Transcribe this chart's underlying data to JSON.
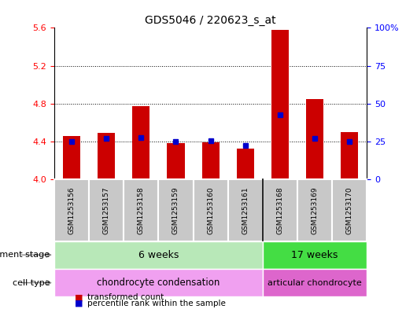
{
  "title": "GDS5046 / 220623_s_at",
  "samples": [
    "GSM1253156",
    "GSM1253157",
    "GSM1253158",
    "GSM1253159",
    "GSM1253160",
    "GSM1253161",
    "GSM1253168",
    "GSM1253169",
    "GSM1253170"
  ],
  "bar_values": [
    4.46,
    4.49,
    4.77,
    4.38,
    4.39,
    4.32,
    5.58,
    4.85,
    4.5
  ],
  "percentile_values": [
    4.4,
    4.43,
    4.44,
    4.4,
    4.41,
    4.36,
    4.68,
    4.43,
    4.4
  ],
  "ymin": 4.0,
  "ymax": 5.6,
  "yticks": [
    4.0,
    4.4,
    4.8,
    5.2,
    5.6
  ],
  "right_yticks": [
    0,
    25,
    50,
    75,
    100
  ],
  "bar_color": "#cc0000",
  "percentile_color": "#0000cc",
  "bar_width": 0.5,
  "dev_stage_6weeks": "6 weeks",
  "dev_stage_17weeks": "17 weeks",
  "cell_type_chondro": "chondrocyte condensation",
  "cell_type_articular": "articular chondrocyte",
  "color_light_green": "#b8e8b8",
  "color_green": "#44dd44",
  "color_light_pink": "#f0a0f0",
  "color_pink": "#dd66cc",
  "color_gray": "#c8c8c8",
  "legend_tc": "transformed count",
  "legend_pr": "percentile rank within the sample",
  "dev_stage_label": "development stage",
  "cell_type_label": "cell type"
}
